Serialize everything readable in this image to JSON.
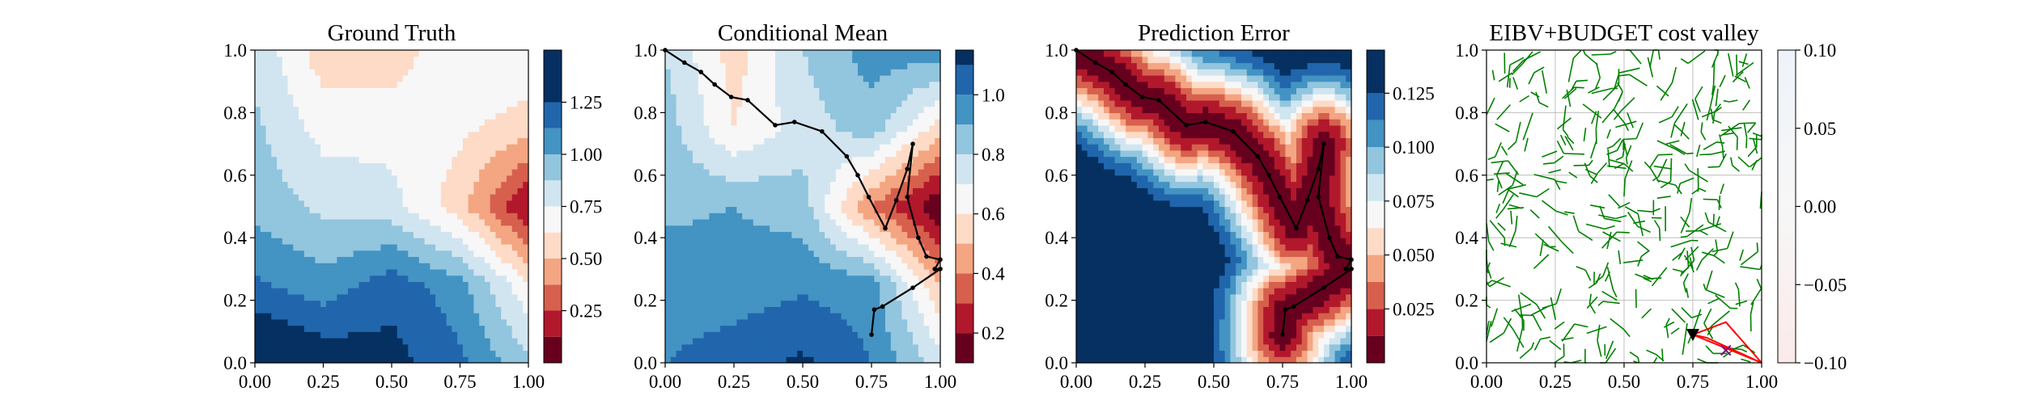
{
  "colors": {
    "rdbu_levels": [
      "#67001f",
      "#b2182b",
      "#d6604d",
      "#f4a582",
      "#fddbc7",
      "#f7f7f7",
      "#d1e5f0",
      "#92c5de",
      "#4393c3",
      "#2166ac",
      "#053061"
    ],
    "robot_path": "#000000",
    "tree_edges": "#008000",
    "grid": "#b0b0b0",
    "candidate_triangle": "#ff0000",
    "start_marker": "#000000",
    "target_marker": "#800080"
  },
  "chart_data": [
    {
      "type": "heatmap",
      "title": "Ground Truth",
      "xlabel": "",
      "ylabel": "",
      "xlim": [
        0.0,
        1.0
      ],
      "ylim": [
        0.0,
        1.0
      ],
      "xticks": [
        "0.00",
        "0.25",
        "0.50",
        "0.75",
        "1.00"
      ],
      "yticks": [
        "0.0",
        "0.2",
        "0.4",
        "0.6",
        "0.8",
        "1.0"
      ],
      "colorbar": {
        "levels": [
          0.0,
          0.125,
          0.25,
          0.375,
          0.5,
          0.625,
          0.75,
          0.875,
          1.0,
          1.125,
          1.25,
          1.5
        ],
        "ticks": [
          "0.25",
          "0.50",
          "0.75",
          "1.00",
          "1.25"
        ],
        "tick_values": [
          0.25,
          0.5,
          0.75,
          1.0,
          1.25
        ]
      },
      "field_samples_x": [
        0.0,
        0.25,
        0.5,
        0.75,
        1.0
      ],
      "field_samples_y": [
        0.0,
        0.25,
        0.5,
        0.75,
        1.0
      ],
      "field_values": [
        [
          1.45,
          1.35,
          1.3,
          1.15,
          0.9
        ],
        [
          1.15,
          1.05,
          1.2,
          1.05,
          0.65
        ],
        [
          0.95,
          0.85,
          0.8,
          0.55,
          0.1
        ],
        [
          0.9,
          0.7,
          0.7,
          0.65,
          0.55
        ],
        [
          0.85,
          0.55,
          0.55,
          0.75,
          0.75
        ]
      ]
    },
    {
      "type": "heatmap",
      "title": "Conditional Mean",
      "xlabel": "",
      "ylabel": "",
      "xlim": [
        0.0,
        1.0
      ],
      "ylim": [
        0.0,
        1.0
      ],
      "xticks": [
        "0.00",
        "0.25",
        "0.50",
        "0.75",
        "1.00"
      ],
      "yticks": [
        "0.0",
        "0.2",
        "0.4",
        "0.6",
        "0.8",
        "1.0"
      ],
      "colorbar": {
        "levels": [
          0.1,
          0.2,
          0.3,
          0.4,
          0.5,
          0.6,
          0.7,
          0.8,
          0.9,
          1.0,
          1.1,
          1.15
        ],
        "ticks": [
          "0.2",
          "0.4",
          "0.6",
          "0.8",
          "1.0"
        ],
        "tick_values": [
          0.2,
          0.4,
          0.6,
          0.8,
          1.0
        ]
      },
      "field_samples_x": [
        0.0,
        0.25,
        0.5,
        0.75,
        1.0
      ],
      "field_samples_y": [
        0.0,
        0.25,
        0.5,
        0.75,
        1.0
      ],
      "field_values": [
        [
          1.0,
          1.05,
          1.12,
          1.0,
          0.75
        ],
        [
          0.95,
          0.95,
          0.98,
          0.95,
          0.5
        ],
        [
          0.88,
          0.9,
          0.85,
          0.4,
          0.1
        ],
        [
          0.85,
          0.6,
          0.75,
          0.85,
          0.55
        ],
        [
          0.8,
          0.55,
          0.8,
          0.95,
          0.95
        ]
      ],
      "path_x": [
        0.0,
        0.07,
        0.13,
        0.18,
        0.24,
        0.3,
        0.4,
        0.47,
        0.57,
        0.66,
        0.7,
        0.74,
        0.8,
        0.84,
        0.88,
        0.9,
        0.88,
        0.92,
        0.95,
        1.0,
        0.98,
        1.0,
        0.9,
        0.79,
        0.76,
        0.75
      ],
      "path_y": [
        1.0,
        0.96,
        0.93,
        0.89,
        0.85,
        0.84,
        0.76,
        0.77,
        0.74,
        0.66,
        0.6,
        0.53,
        0.43,
        0.52,
        0.62,
        0.7,
        0.53,
        0.4,
        0.34,
        0.33,
        0.3,
        0.3,
        0.24,
        0.18,
        0.17,
        0.09
      ]
    },
    {
      "type": "heatmap",
      "title": "Prediction Error",
      "xlabel": "",
      "ylabel": "",
      "xlim": [
        0.0,
        1.0
      ],
      "ylim": [
        0.0,
        1.0
      ],
      "xticks": [
        "0.00",
        "0.25",
        "0.50",
        "0.75",
        "1.00"
      ],
      "yticks": [
        "0.0",
        "0.2",
        "0.4",
        "0.6",
        "0.8",
        "1.0"
      ],
      "colorbar": {
        "levels": [
          0.0,
          0.0125,
          0.025,
          0.0375,
          0.05,
          0.0625,
          0.075,
          0.0875,
          0.1,
          0.1125,
          0.125,
          0.145
        ],
        "ticks": [
          "0.025",
          "0.050",
          "0.075",
          "0.100",
          "0.125"
        ],
        "tick_values": [
          0.025,
          0.05,
          0.075,
          0.1,
          0.125
        ]
      },
      "path_x": [
        0.0,
        0.07,
        0.13,
        0.18,
        0.24,
        0.3,
        0.4,
        0.47,
        0.57,
        0.66,
        0.7,
        0.74,
        0.8,
        0.84,
        0.88,
        0.9,
        0.88,
        0.92,
        0.95,
        1.0,
        0.98,
        1.0,
        0.9,
        0.79,
        0.76,
        0.75
      ],
      "path_y": [
        1.0,
        0.96,
        0.93,
        0.89,
        0.85,
        0.84,
        0.76,
        0.77,
        0.74,
        0.66,
        0.6,
        0.53,
        0.43,
        0.52,
        0.62,
        0.7,
        0.53,
        0.4,
        0.34,
        0.33,
        0.3,
        0.3,
        0.24,
        0.18,
        0.17,
        0.09
      ]
    },
    {
      "type": "scatter",
      "title": "EIBV+BUDGET cost valley",
      "xlabel": "",
      "ylabel": "",
      "xlim": [
        0.0,
        1.0
      ],
      "ylim": [
        0.0,
        1.0
      ],
      "grid": true,
      "xticks": [
        "0.00",
        "0.25",
        "0.50",
        "0.75",
        "1.00"
      ],
      "yticks": [
        "0.0",
        "0.2",
        "0.4",
        "0.6",
        "0.8",
        "1.0"
      ],
      "colorbar": {
        "range": [
          -0.1,
          0.1
        ],
        "ticks": [
          "0.10",
          "0.05",
          "0.00",
          "−0.05",
          "−0.10"
        ],
        "tick_values": [
          0.1,
          0.05,
          0.0,
          -0.05,
          -0.1
        ]
      },
      "current_location": [
        0.75,
        0.09
      ],
      "next_waypoint": [
        0.87,
        0.04
      ],
      "candidate_triangle": [
        [
          0.75,
          0.09
        ],
        [
          0.87,
          0.13
        ],
        [
          1.0,
          0.0
        ],
        [
          0.8,
          0.08
        ]
      ]
    }
  ]
}
